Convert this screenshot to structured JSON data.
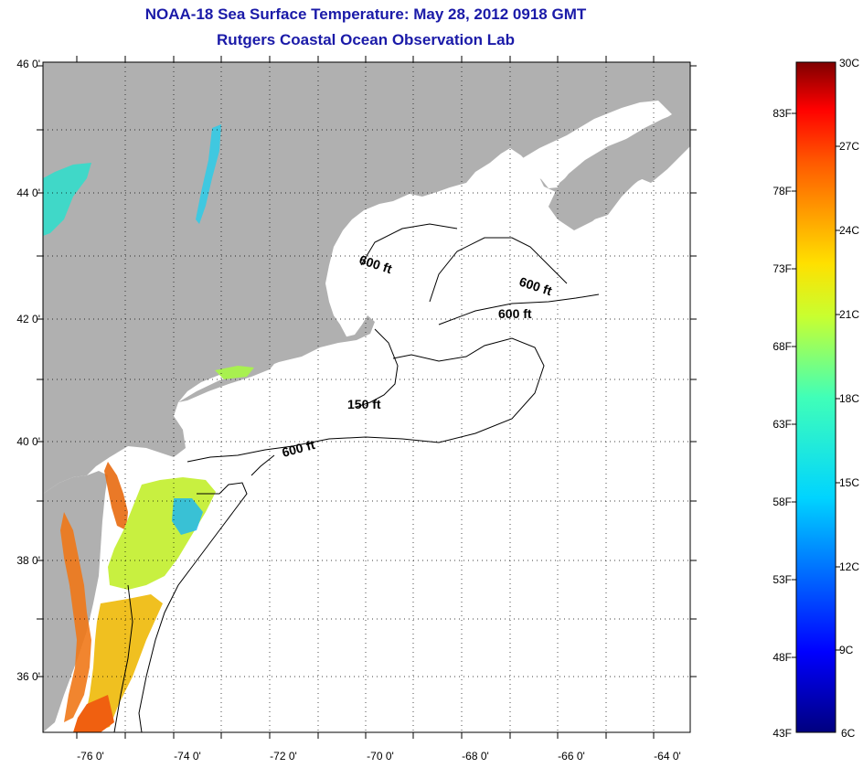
{
  "title_line1": "NOAA-18 Sea Surface Temperature:  May 28, 2012 0918 GMT",
  "title_line2": "Rutgers Coastal Ocean Observation Lab",
  "map": {
    "lat_ticks": [
      "46 0'",
      "44 0'",
      "42 0'",
      "40 0'",
      "38 0'",
      "36 0'"
    ],
    "lon_ticks": [
      "-76 0'",
      "-74 0'",
      "-72 0'",
      "-70 0'",
      "-68 0'",
      "-66 0'",
      "-64 0'"
    ],
    "contour_labels": [
      "600 ft",
      "600 ft",
      "600 ft",
      "150 ft",
      "600 ft"
    ],
    "colors": {
      "land": "#b0b0b0",
      "ocean": "#ffffff",
      "coast": "#000000",
      "grid": "#000000"
    }
  },
  "colorbar": {
    "top_label": "30C",
    "bottom_f": "43F",
    "bottom_c": "6C",
    "fahrenheit": [
      "83F",
      "78F",
      "73F",
      "68F",
      "63F",
      "58F",
      "53F",
      "48F"
    ],
    "celsius": [
      "27C",
      "24C",
      "21C",
      "18C",
      "15C",
      "12C",
      "9C"
    ]
  }
}
